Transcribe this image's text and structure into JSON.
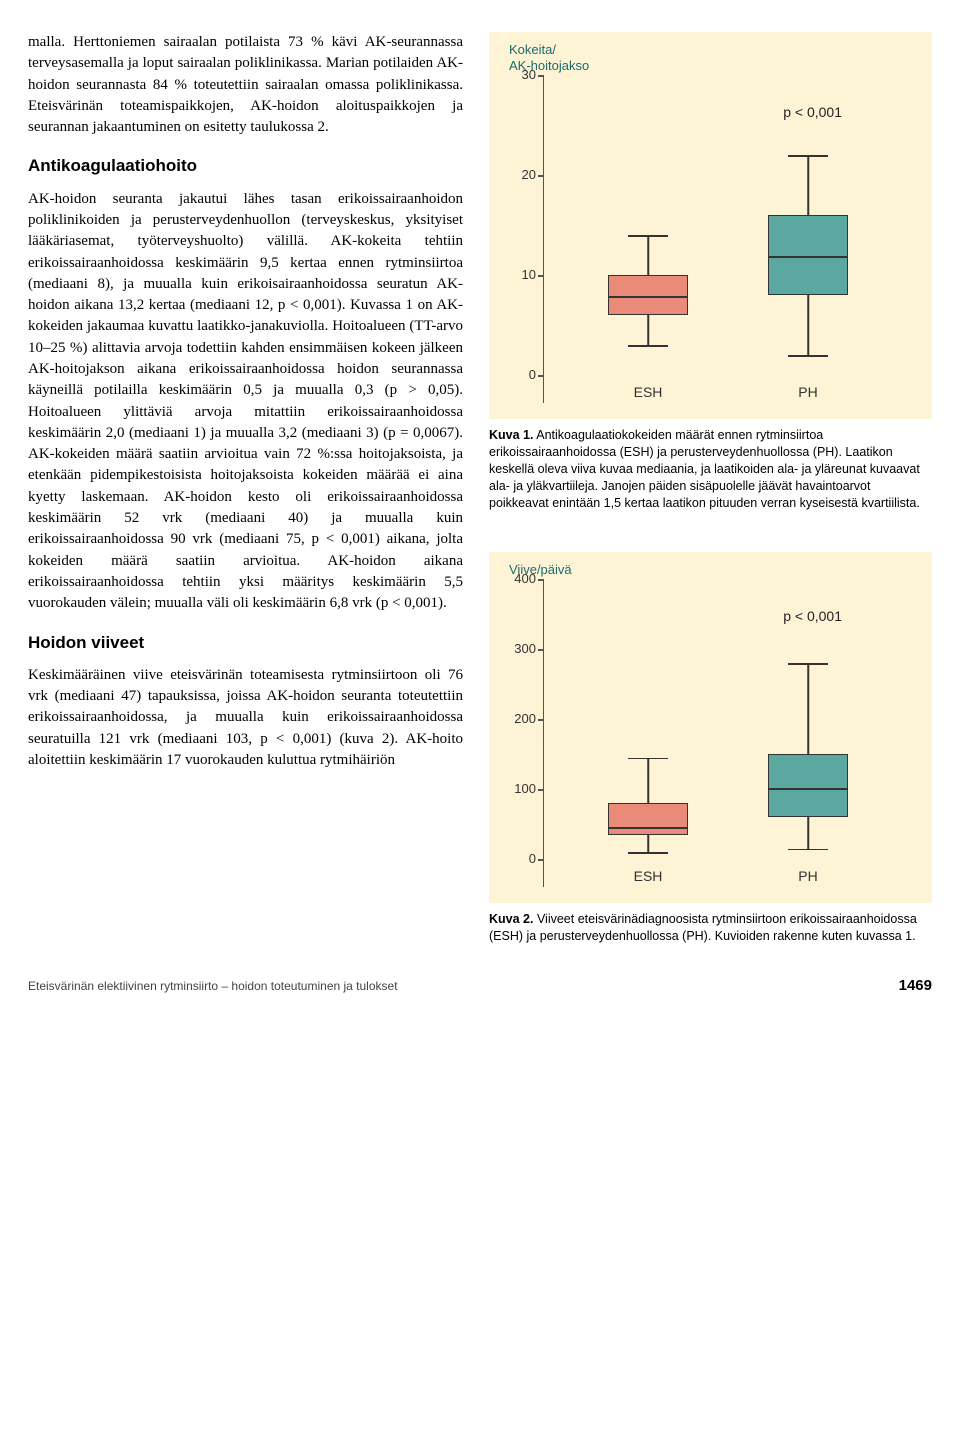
{
  "left": {
    "para1": "malla. Herttoniemen sairaalan potilaista 73 % kävi AK-seurannassa terveysasemalla ja loput sairaalan poliklinikassa. Marian potilaiden AK-hoidon seurannasta 84 % toteutettiin sairaalan omassa poliklinikassa. Eteisvärinän toteamispaikkojen, AK-hoidon aloituspaikkojen ja seurannan jakaantuminen on esitetty taulukossa 2.",
    "h1": "Antikoagulaatiohoito",
    "para2": "AK-hoidon seuranta jakautui lähes tasan erikoissairaanhoidon poliklinikoiden ja perusterveydenhuollon (terveyskeskus, yksityiset lääkäriasemat, työterveyshuolto) välillä. AK-kokeita tehtiin erikoissairaanhoidossa keskimäärin 9,5 kertaa ennen rytminsiirtoa (mediaani 8), ja muualla kuin erikoisairaanhoidossa seuratun AK-hoidon aikana 13,2 kertaa (mediaani 12, p < 0,001). Kuvassa 1 on AK-kokeiden jakaumaa kuvattu laatikko-janakuviolla. Hoitoalueen (TT-arvo 10–25 %) alittavia arvoja todettiin kahden ensimmäisen kokeen jälkeen AK-hoitojakson aikana erikoissairaanhoidossa hoidon seurannassa käyneillä potilailla keskimäärin 0,5 ja muualla 0,3 (p > 0,05). Hoitoalueen ylittäviä arvoja mitattiin erikoissairaanhoidossa keskimäärin 2,0 (mediaani 1) ja muualla 3,2 (mediaani 3) (p = 0,0067). AK-kokeiden määrä saatiin arvioitua vain 72 %:ssa hoitojaksoista, ja etenkään pidempikestoisista hoitojaksoista kokeiden määrää ei aina kyetty laskemaan. AK-hoidon kesto oli erikoissairaanhoidossa keskimäärin 52 vrk (mediaani 40) ja muualla kuin erikoissairaanhoidossa 90 vrk (mediaani 75, p < 0,001) aikana, jolta kokeiden määrä saatiin arvioitua. AK-hoidon aikana erikoissairaanhoidossa tehtiin yksi määritys keskimäärin 5,5 vuorokauden välein; muualla väli oli keskimäärin 6,8 vrk (p < 0,001).",
    "h2": "Hoidon viiveet",
    "para3": "Keskimääräinen viive eteisvärinän toteamisesta rytminsiirtoon oli 76 vrk (mediaani 47) tapauksissa, joissa AK-hoidon seuranta toteutettiin erikoissairaanhoidossa, ja muualla kuin erikoissairaanhoidossa seuratuilla 121 vrk (mediaani 103, p < 0,001) (kuva 2). AK-hoito aloitettiin keskimäärin 17 vuorokauden kuluttua rytmihäiriön"
  },
  "chart1": {
    "type": "boxplot",
    "title_line1": "Kokeita/",
    "title_line2": "AK-hoitojakso",
    "p_label": "p < 0,001",
    "ylim": [
      0,
      30
    ],
    "yticks": [
      0,
      10,
      20,
      30
    ],
    "background_color": "#fdf4d6",
    "title_color": "#1a6b6b",
    "axis_color": "#555555",
    "categories": [
      "ESH",
      "PH"
    ],
    "boxes": [
      {
        "label": "ESH",
        "q1": 6,
        "median": 8,
        "q3": 10,
        "lower": 3,
        "upper": 14,
        "fill": "#e98b78"
      },
      {
        "label": "PH",
        "q1": 8,
        "median": 12,
        "q3": 16,
        "lower": 2,
        "upper": 22,
        "fill": "#5aa8a0"
      }
    ]
  },
  "caption1": {
    "bold": "Kuva 1.",
    "text": " Antikoagulaatiokokeiden määrät ennen rytminsiirtoa erikoissairaanhoidossa (ESH) ja perusterveydenhuollossa (PH). Laatikon keskellä oleva viiva kuvaa mediaania, ja laatikoiden ala- ja yläreunat kuvaavat ala- ja yläkvartiileja. Janojen päiden sisäpuolelle jäävät havaintoarvot poikkeavat enintään 1,5 kertaa laatikon pituuden verran kyseisestä kvartiilista."
  },
  "chart2": {
    "type": "boxplot",
    "title": "Viive/päivä",
    "p_label": "p < 0,001",
    "ylim": [
      0,
      400
    ],
    "yticks": [
      0,
      100,
      200,
      300,
      400
    ],
    "background_color": "#fdf4d6",
    "title_color": "#1a6b6b",
    "axis_color": "#555555",
    "categories": [
      "ESH",
      "PH"
    ],
    "boxes": [
      {
        "label": "ESH",
        "q1": 35,
        "median": 47,
        "q3": 80,
        "lower": 10,
        "upper": 145,
        "fill": "#e98b78"
      },
      {
        "label": "PH",
        "q1": 60,
        "median": 103,
        "q3": 150,
        "lower": 15,
        "upper": 280,
        "fill": "#5aa8a0"
      }
    ]
  },
  "caption2": {
    "bold": "Kuva 2.",
    "text": " Viiveet eteisvärinädiagnoosista rytminsiirtoon erikoissairaanhoidossa (ESH) ja perusterveydenhuollossa (PH). Kuvioiden rakenne kuten kuvassa 1."
  },
  "footer": {
    "running": "Eteisvärinän elektiivinen rytminsiirto – hoidon toteutuminen ja tulokset",
    "page": "1469"
  }
}
